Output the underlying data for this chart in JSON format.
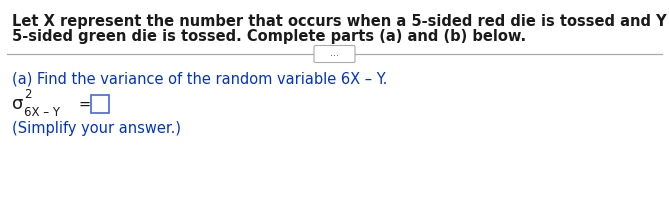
{
  "bg_color": "#ffffff",
  "text_color": "#1a1a1a",
  "blue_color": "#0033cc",
  "line_color": "#aaaaaa",
  "paragraph1_line1": "Let X represent the number that occurs when a 5-sided red die is tossed and Y the number that occurs when a",
  "paragraph1_line2": "5-sided green die is tossed. Complete parts (a) and (b) below.",
  "divider_text": "...",
  "part_a_label": "(a) Find the variance of the random variable 6X – Y.",
  "sigma_label": "σ",
  "superscript_2": "2",
  "subscript_label": "6X – Y",
  "equals": "=",
  "simplify": "(Simplify your answer.)",
  "font_size_main": 10.5,
  "font_size_small": 8.5,
  "font_size_sigma": 13
}
